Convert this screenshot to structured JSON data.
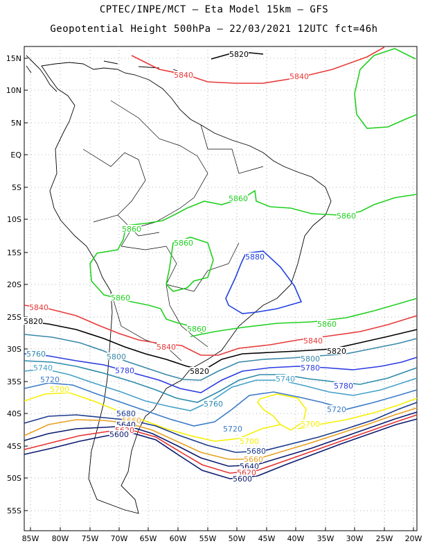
{
  "title_line1": "CPTEC/INPE/MCT –  Eta Model 15km – GFS",
  "title_line2": "Geopotential Height 500hPa – 22/03/2021 12UTC fct=46h",
  "lat_labels": [
    "15N",
    "10N",
    "5N",
    "EQ",
    "5S",
    "10S",
    "15S",
    "20S",
    "25S",
    "30S",
    "35S",
    "40S",
    "45S",
    "50S",
    "55S"
  ],
  "lon_labels": [
    "85W",
    "80W",
    "75W",
    "70W",
    "65W",
    "60W",
    "55W",
    "50W",
    "45W",
    "40W",
    "35W",
    "30W",
    "25W",
    "20W"
  ],
  "colors": {
    "c5600": "#0a1a6e",
    "c5620": "#e63232",
    "c5640": "#0a1a6e",
    "c5660": "#e8a020",
    "c5680": "#1a3a8c",
    "c5700": "#f5f000",
    "c5720": "#3a7ac8",
    "c5740": "#44a0c8",
    "c5760": "#2a8aaa",
    "c5780": "#2a3ae0",
    "c5800": "#3888a8",
    "c5820": "#000000",
    "c5840": "#e83838",
    "c5860": "#20d020",
    "c5880": "#2040e0"
  },
  "contour_labels": [
    {
      "text": "5820"
    },
    {
      "text": "5840"
    },
    {
      "text": "5840"
    },
    {
      "text": "5860"
    },
    {
      "text": "5860"
    },
    {
      "text": "5860"
    },
    {
      "text": "5860"
    },
    {
      "text": "5860"
    },
    {
      "text": "5860"
    },
    {
      "text": "5860"
    },
    {
      "text": "5880"
    },
    {
      "text": "5840"
    },
    {
      "text": "5820"
    },
    {
      "text": "5840"
    },
    {
      "text": "5840"
    },
    {
      "text": "5820"
    },
    {
      "text": "5820"
    },
    {
      "text": "5860"
    },
    {
      "text": "5760"
    },
    {
      "text": "5800"
    },
    {
      "text": "5800"
    },
    {
      "text": "5740"
    },
    {
      "text": "5780"
    },
    {
      "text": "5780"
    },
    {
      "text": "5720"
    },
    {
      "text": "5740"
    },
    {
      "text": "5700"
    },
    {
      "text": "5780"
    },
    {
      "text": "5760"
    },
    {
      "text": "5720"
    },
    {
      "text": "5720"
    },
    {
      "text": "5700"
    },
    {
      "text": "5700"
    },
    {
      "text": "5680"
    },
    {
      "text": "5660"
    },
    {
      "text": "5640"
    },
    {
      "text": "5620"
    },
    {
      "text": "5600"
    },
    {
      "text": "5680"
    },
    {
      "text": "5660"
    },
    {
      "text": "5640"
    },
    {
      "text": "5620"
    },
    {
      "text": "5600"
    }
  ]
}
